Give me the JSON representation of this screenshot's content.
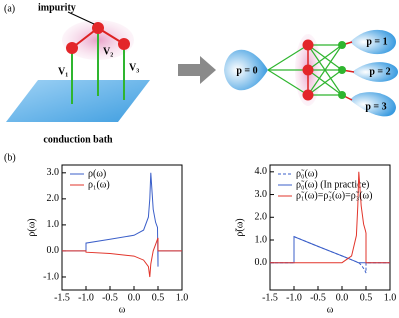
{
  "figure": {
    "panel_a": "(a)",
    "panel_b": "(b)",
    "impurity": "impurity",
    "couplings": [
      "V₁",
      "V₂",
      "V₃"
    ],
    "bath": "conduction bath",
    "baths": [
      "p = 0",
      "p = 1",
      "p = 2",
      "p = 3"
    ]
  },
  "chart_data": [
    {
      "type": "line",
      "ylabel": "ρ(ω)",
      "xlabel": "ω",
      "x": [
        -1.5,
        -1.0,
        -1.0,
        -0.5,
        0.0,
        0.2,
        0.3,
        0.33,
        0.35,
        0.4,
        0.45,
        0.49,
        0.5,
        0.5,
        1.0
      ],
      "series": [
        {
          "name": "ρ(ω)",
          "color": "#3b5fc9",
          "values": [
            0,
            0,
            0.3,
            0.45,
            0.6,
            0.8,
            1.3,
            2.0,
            3.0,
            1.6,
            1.1,
            0.9,
            -0.6,
            0,
            0
          ]
        },
        {
          "name": "ρ₁(ω)",
          "color": "#e2352b",
          "values": [
            0,
            0,
            -0.05,
            -0.1,
            -0.2,
            -0.35,
            -0.6,
            -1.0,
            -0.5,
            0.0,
            0.25,
            0.45,
            0.5,
            0,
            0
          ]
        }
      ],
      "xlim": [
        -1.5,
        1.0
      ],
      "xticks": [
        -1.5,
        {
          "value": -1.0,
          "label": "-1.0"
        },
        -0.5,
        {
          "value": 0,
          "label": "0.0"
        },
        0.5,
        {
          "value": 1.0,
          "label": "1.0"
        }
      ],
      "ylim": [
        -1.5,
        3.3
      ],
      "yticks": [
        {
          "value": -1,
          "label": "-1.0"
        },
        {
          "value": 0,
          "label": "0.0"
        },
        {
          "value": 1,
          "label": "1.0"
        },
        {
          "value": 2,
          "label": "2.0"
        },
        {
          "value": 3,
          "label": "3.0"
        }
      ]
    },
    {
      "type": "line",
      "ylabel": "ρ̃(ω)",
      "xlabel": "ω",
      "x": [
        -1.5,
        -1.0,
        -1.0,
        -0.5,
        0.0,
        0.2,
        0.3,
        0.33,
        0.35,
        0.4,
        0.45,
        0.49,
        0.5,
        0.5,
        1.0
      ],
      "series": [
        {
          "name": "ρ̃₀(ω)",
          "color": "#3b5fc9",
          "dashed": true,
          "values": [
            0,
            0,
            1.15,
            0.72,
            0.3,
            0.13,
            0.04,
            0.01,
            0,
            -0.1,
            -0.25,
            -0.4,
            -0.45,
            0,
            0
          ]
        },
        {
          "name": "ρ̃₀(ω) (In practice)",
          "color": "#3b5fc9",
          "values": [
            0,
            0,
            1.15,
            0.72,
            0.3,
            0.13,
            0.04,
            0.01,
            0,
            0,
            0,
            0,
            0,
            0,
            0
          ]
        },
        {
          "name": "ρ̃₁(ω)=ρ̃₂(ω)=ρ̃₃(ω)",
          "color": "#e2352b",
          "values": [
            0,
            0,
            0,
            0,
            0,
            0.3,
            1.2,
            2.5,
            4.0,
            2.5,
            1.7,
            1.4,
            1.3,
            0,
            0
          ]
        }
      ],
      "xlim": [
        -1.5,
        1.0
      ],
      "xticks": [
        -1.5,
        {
          "value": -1.0,
          "label": "-1.0"
        },
        -0.5,
        {
          "value": 0,
          "label": "0.0"
        },
        0.5,
        {
          "value": 1.0,
          "label": "1.0"
        }
      ],
      "ylim": [
        -1.2,
        4.3
      ],
      "yticks": [
        {
          "value": 0,
          "label": "0.0"
        },
        {
          "value": 1,
          "label": "1.0"
        },
        {
          "value": 2,
          "label": "2.0"
        },
        {
          "value": 3,
          "label": "3.0"
        },
        {
          "value": 4,
          "label": "4.0"
        }
      ]
    }
  ]
}
